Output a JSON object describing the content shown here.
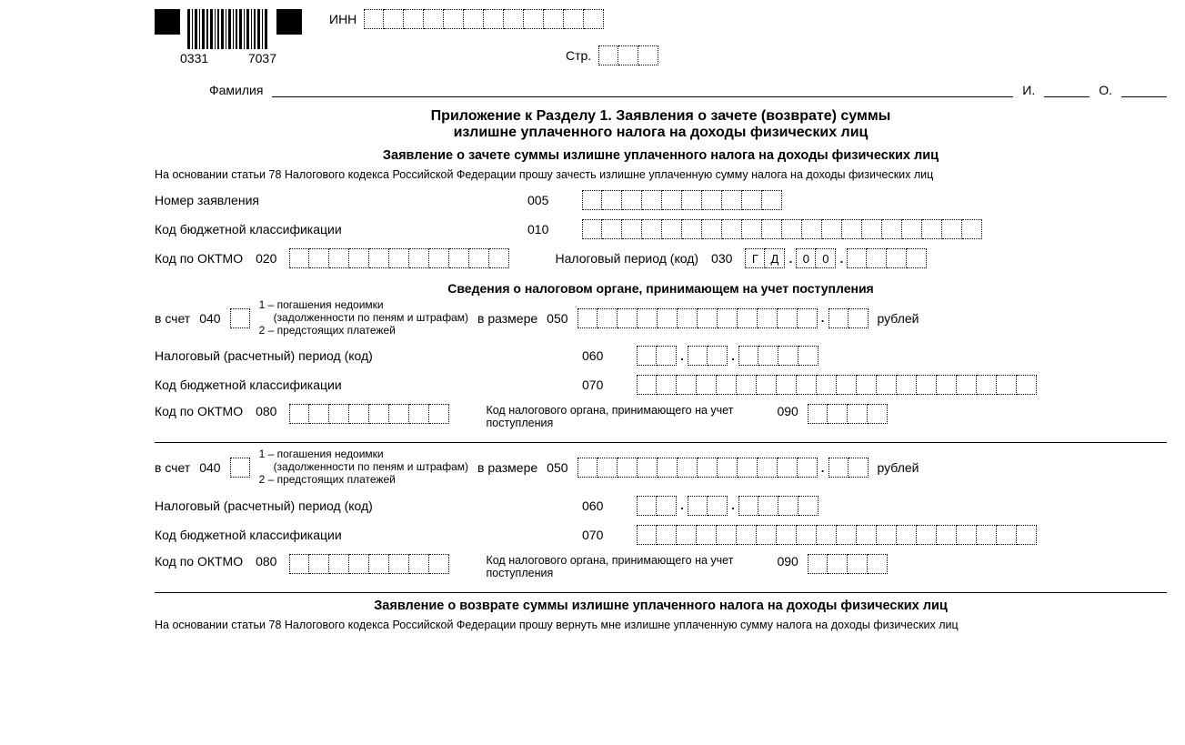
{
  "barcode_left": "0331",
  "barcode_right": "7037",
  "header": {
    "inn_label": "ИНН",
    "page_label": "Стр.",
    "surname_label": "Фамилия",
    "i_label": "И.",
    "o_label": "О."
  },
  "title_line1": "Приложение к Разделу 1. Заявления о зачете (возврате) суммы",
  "title_line2": "излишне уплаченного налога на доходы физических лиц",
  "subtitle_offset": "Заявление о зачете суммы излишне уплаченного налога на доходы физических лиц",
  "basis_offset": "На основании статьи 78 Налогового кодекса Российской Федерации прошу зачесть излишне уплаченную сумму налога на доходы физических лиц",
  "rows": {
    "app_number_label": "Номер заявления",
    "app_number_code": "005",
    "kbk_label": "Код бюджетной классификации",
    "kbk_code": "010",
    "oktmo_label": "Код по ОКТМО",
    "oktmo_code": "020",
    "tax_period_label": "Налоговый период (код)",
    "tax_period_code": "030",
    "tax_period_prefix": [
      "Г",
      "Д",
      ".",
      "0",
      "0",
      "."
    ]
  },
  "svedeniya_title": "Сведения о налоговом органе, принимающем на учет поступления",
  "block": {
    "v_schet_label": "в счет",
    "v_schet_code": "040",
    "legend_1": "1 – погашения недоимки",
    "legend_1b": "(задолженности по пеням и штрафам)",
    "legend_2": "2 – предстоящих платежей",
    "v_razmere_label": "в размере",
    "v_razmere_code": "050",
    "rub_label": "рублей",
    "nal_period_label": "Налоговый (расчетный) период (код)",
    "nal_period_code": "060",
    "kbk2_label": "Код бюджетной классификации",
    "kbk2_code": "070",
    "oktmo2_label": "Код по ОКТМО",
    "oktmo2_code": "080",
    "tax_org_label": "Код налогового органа, принимающего на учет поступления",
    "tax_org_code": "090"
  },
  "subtitle_return": "Заявление о возврате суммы излишне уплаченного налога на доходы физических лиц",
  "basis_return": "На основании статьи 78 Налогового кодекса Российской Федерации прошу вернуть мне излишне уплаченную сумму налога на доходы физических лиц",
  "style": {
    "cell_count_inn": 12,
    "cell_count_page": 3,
    "cell_count_app": 10,
    "cell_count_kbk": 20,
    "cell_count_oktmo": 11,
    "cell_count_period_tail": 4,
    "cell_count_amount_int": 12,
    "cell_count_amount_dec": 2,
    "cell_count_taxorg": 4,
    "cell_count_060_groups": [
      2,
      2,
      4
    ]
  }
}
